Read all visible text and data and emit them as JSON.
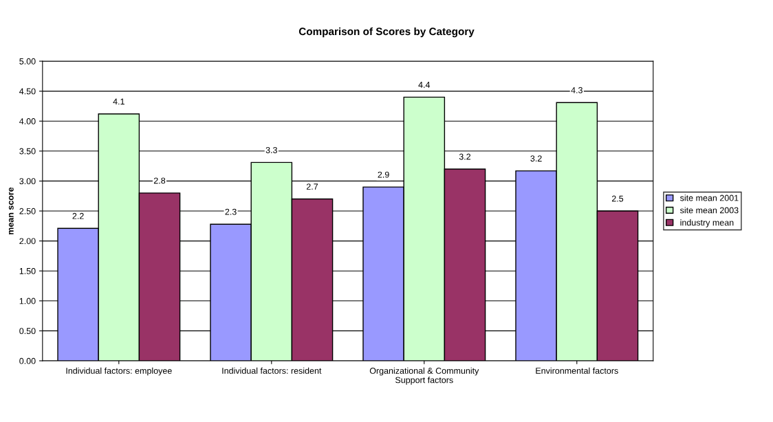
{
  "chart_data": {
    "type": "bar",
    "title": "Comparison of Scores by Category",
    "ylabel": "mean score",
    "categories": [
      "Individual factors: employee",
      "Individual factors: resident",
      "Organizational & Community\nSupport factors",
      "Environmental factors"
    ],
    "series": [
      {
        "name": "site mean 2001",
        "color": "#9999ff",
        "values": [
          2.21,
          2.28,
          2.9,
          3.17
        ],
        "value_labels": [
          "2.2",
          "2.3",
          "2.9",
          "3.2"
        ]
      },
      {
        "name": "site mean 2003",
        "color": "#ccffcc",
        "values": [
          4.12,
          3.31,
          4.4,
          4.31
        ],
        "value_labels": [
          "4.1",
          "3.3",
          "4.4",
          "4.3"
        ]
      },
      {
        "name": "industry mean",
        "color": "#993366",
        "values": [
          2.8,
          2.7,
          3.2,
          2.5
        ],
        "value_labels": [
          "2.8",
          "2.7",
          "3.2",
          "2.5"
        ]
      }
    ],
    "ylim": [
      0,
      5
    ],
    "yticks": [
      {
        "value": 0,
        "label": "0.00"
      },
      {
        "value": 0.5,
        "label": "0.50"
      },
      {
        "value": 1,
        "label": "1.00"
      },
      {
        "value": 1.5,
        "label": "1.50"
      },
      {
        "value": 2,
        "label": "2.00"
      },
      {
        "value": 2.5,
        "label": "2.50"
      },
      {
        "value": 3,
        "label": "3.00"
      },
      {
        "value": 3.5,
        "label": "3.50"
      },
      {
        "value": 4,
        "label": "4.00"
      },
      {
        "value": 4.5,
        "label": "4.50"
      },
      {
        "value": 5,
        "label": "5.00"
      }
    ],
    "grid": "y",
    "legend": "right"
  }
}
